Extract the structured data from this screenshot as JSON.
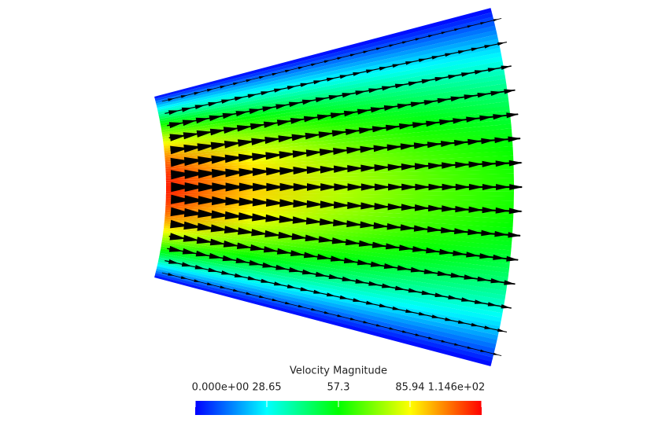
{
  "chart_data": {
    "type": "colorbar-field",
    "title": "Velocity Magnitude",
    "colormap": [
      "#0000ff",
      "#00ffff",
      "#00ff00",
      "#ffff00",
      "#ff0000"
    ],
    "lim": [
      0,
      114.6
    ],
    "ticks": [
      {
        "value": 0,
        "label": "0.000e+00"
      },
      28.65,
      57.3,
      85.94,
      {
        "value": 114.6,
        "label": "1.146e+02"
      }
    ]
  }
}
